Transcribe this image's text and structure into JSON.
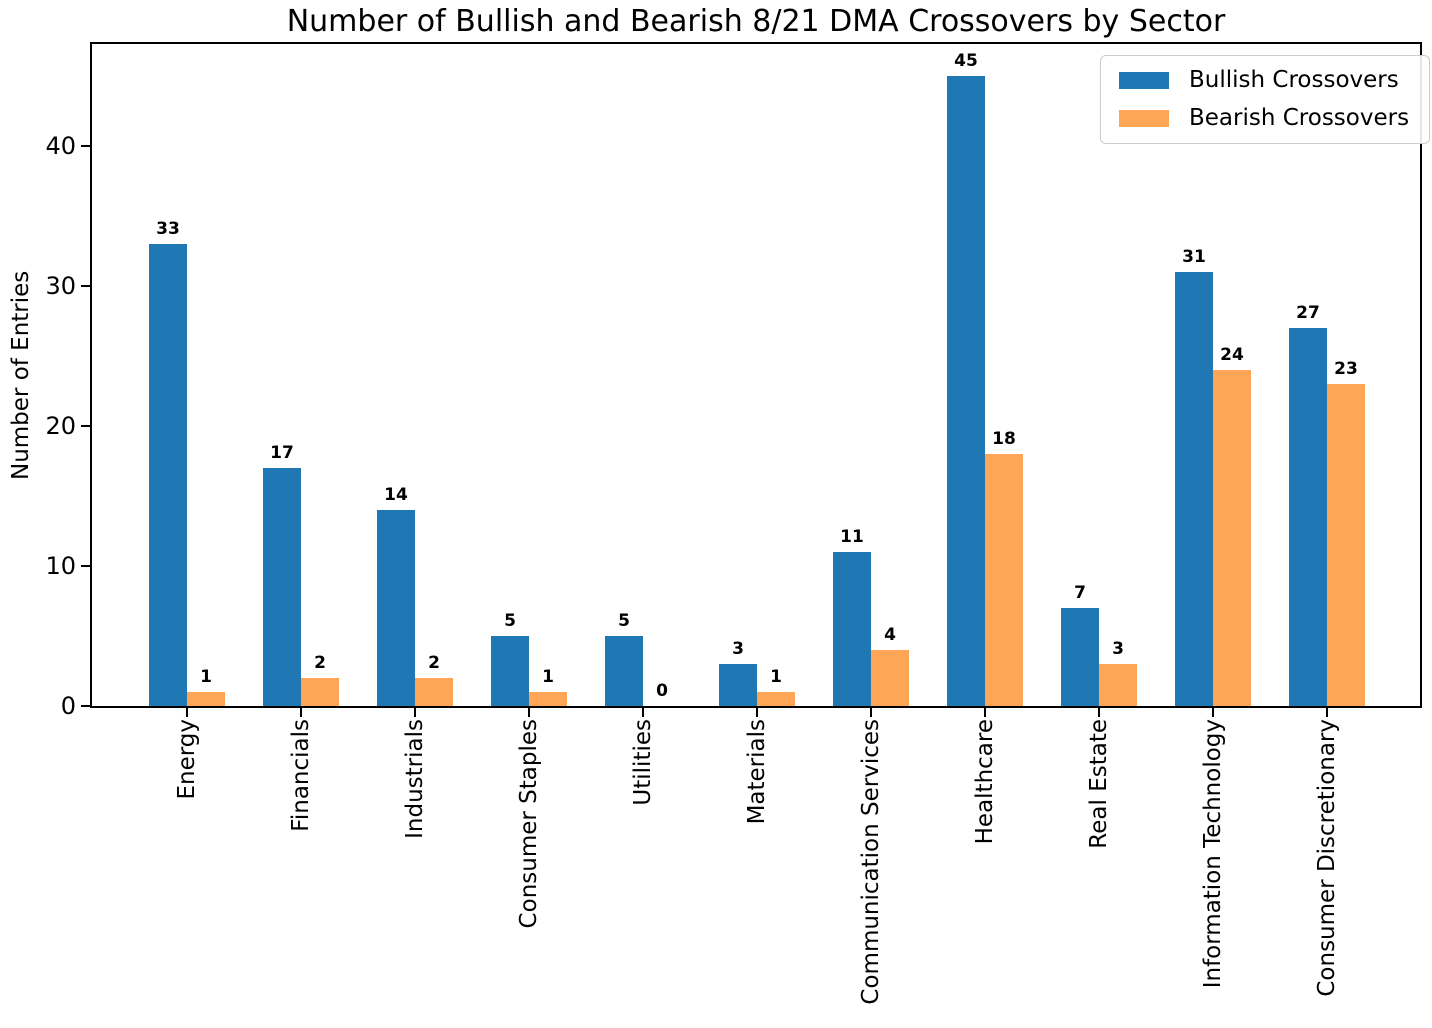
{
  "figure": {
    "background": "#ffffff"
  },
  "chart_data": {
    "type": "bar",
    "title": "Number of Bullish and Bearish 8/21 DMA Crossovers by Sector",
    "xlabel": "",
    "ylabel": "Number of Entries",
    "categories": [
      "Energy",
      "Financials",
      "Industrials",
      "Consumer Staples",
      "Utilities",
      "Materials",
      "Communication Services",
      "Healthcare",
      "Real Estate",
      "Information Technology",
      "Consumer Discretionary"
    ],
    "series": [
      {
        "name": "Bullish Crossovers",
        "color": "#1f77b4",
        "values": [
          33,
          17,
          14,
          5,
          5,
          3,
          11,
          45,
          7,
          31,
          27
        ]
      },
      {
        "name": "Bearish Crossovers",
        "color": "#ffa556",
        "values": [
          1,
          2,
          2,
          1,
          0,
          1,
          4,
          18,
          3,
          24,
          23
        ]
      }
    ],
    "yticks": [
      0,
      10,
      20,
      30,
      40
    ],
    "ylim": [
      0,
      47.25
    ],
    "grid": false,
    "x_tick_rotation": 90,
    "bar_value_labels": true,
    "legend": {
      "position": "upper right",
      "entries": [
        "Bullish Crossovers",
        "Bearish Crossovers"
      ]
    },
    "axis_color": "#000000",
    "text_color": "#000000"
  }
}
